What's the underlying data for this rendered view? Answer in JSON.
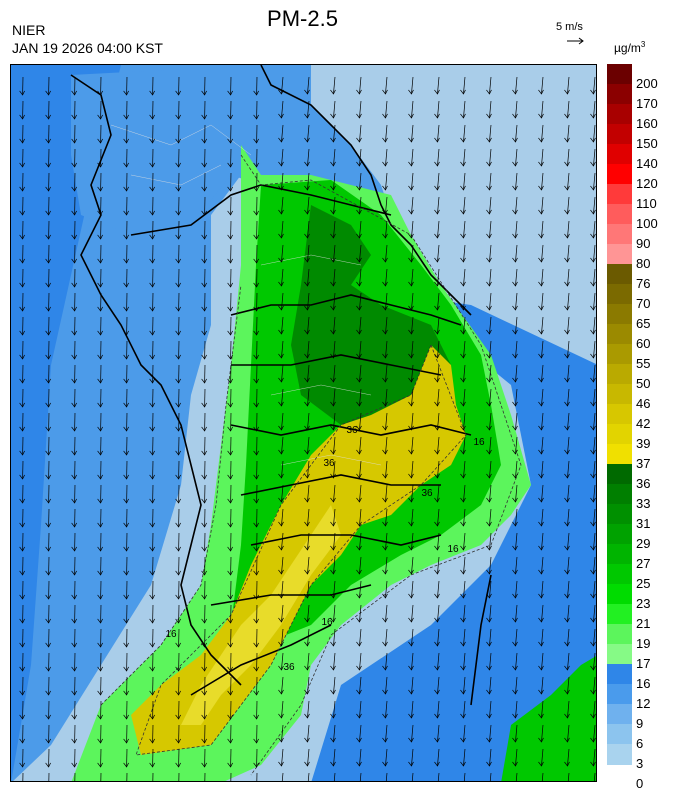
{
  "header": {
    "agency": "NIER",
    "timestamp": "JAN 19 2026 04:00 KST",
    "title": "PM-2.5",
    "wind_scale": "5 m/s",
    "unit_base": "µg/m",
    "unit_exp": "3"
  },
  "legend": {
    "labels": [
      "200",
      "170",
      "160",
      "150",
      "140",
      "120",
      "110",
      "100",
      "90",
      "80",
      "76",
      "70",
      "65",
      "60",
      "55",
      "50",
      "46",
      "42",
      "39",
      "37",
      "36",
      "33",
      "31",
      "29",
      "27",
      "25",
      "23",
      "21",
      "19",
      "17",
      "16",
      "12",
      "9",
      "6",
      "3",
      "0"
    ],
    "colors": [
      "#6b0000",
      "#8b0000",
      "#a80000",
      "#c20000",
      "#e00000",
      "#ff0000",
      "#ff3a3a",
      "#ff5c5c",
      "#ff7777",
      "#ff9595",
      "#6b5a00",
      "#7b6a00",
      "#8b7a00",
      "#9b8a00",
      "#aa9a00",
      "#baaa00",
      "#c8b800",
      "#d7c700",
      "#e2d400",
      "#f0e000",
      "#006a00",
      "#007f00",
      "#009000",
      "#00a200",
      "#00b400",
      "#00c800",
      "#00dc00",
      "#22f022",
      "#5cf55c",
      "#86fa86",
      "#2f86e8",
      "#4a9bec",
      "#6fb1ee",
      "#8cc4ee",
      "#a9d3ee"
    ],
    "contour_labels": [
      "16",
      "16",
      "16",
      "36",
      "36",
      "36",
      "36",
      "16"
    ]
  },
  "map": {
    "colors": {
      "sea": "#a9cde9",
      "sea_mid": "#4c9be9",
      "sea_deep": "#2f86e8",
      "green_light": "#5cf55c",
      "green": "#00c800",
      "green_dark": "#008a00",
      "yellow": "#d6c800",
      "yellow_light": "#e8dc2a",
      "arrow": "#000000",
      "boundary": "#000000"
    }
  }
}
